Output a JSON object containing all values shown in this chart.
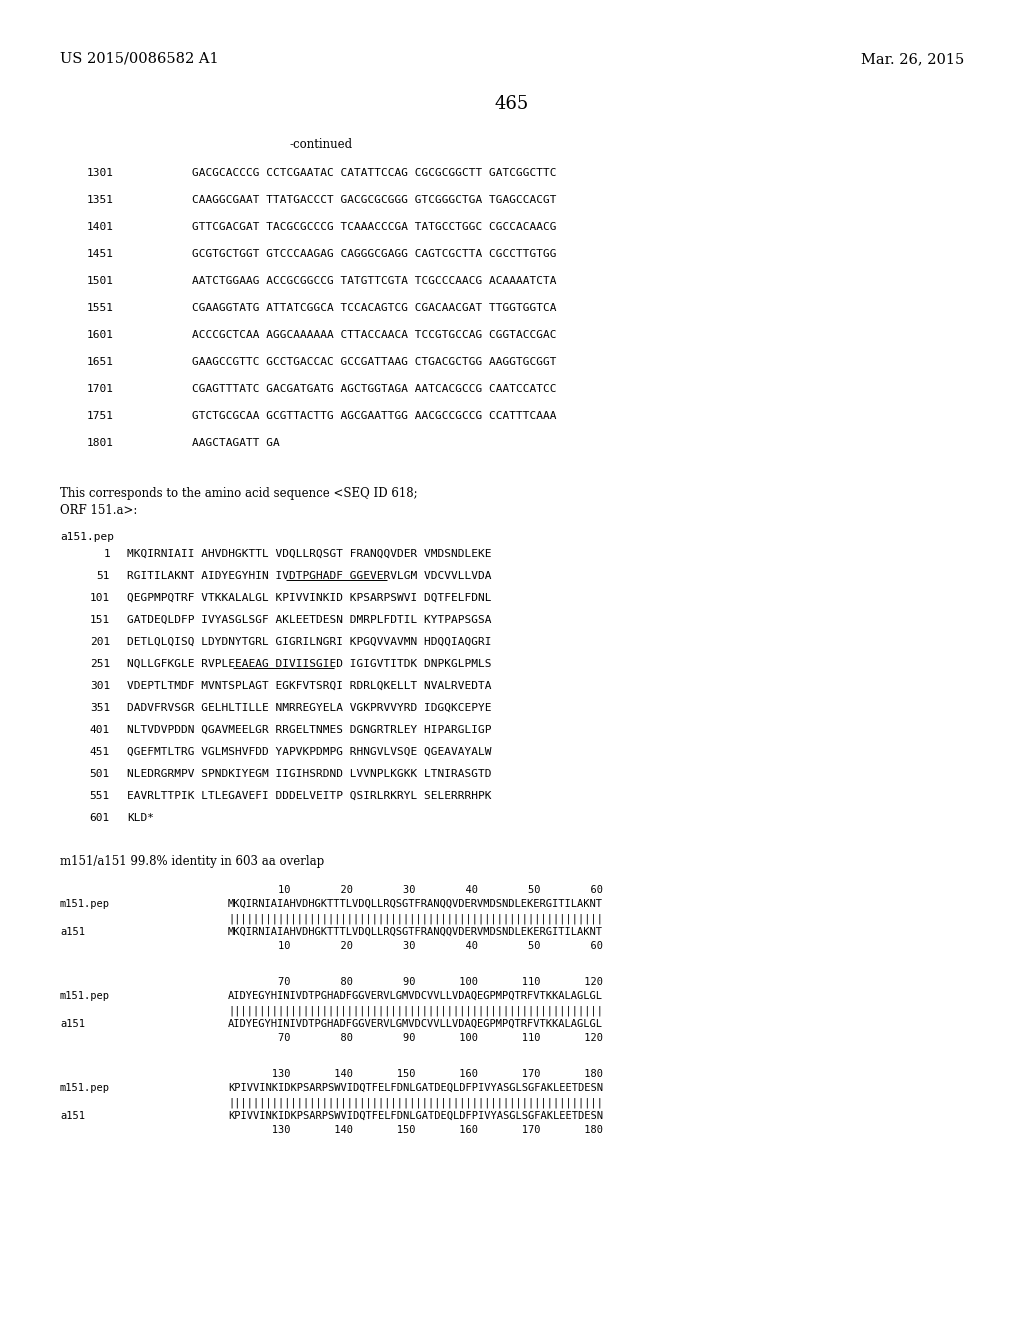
{
  "header_left": "US 2015/0086582 A1",
  "header_right": "Mar. 26, 2015",
  "page_number": "465",
  "continued": "-continued",
  "bg_color": "#ffffff",
  "dna_sequences": [
    [
      "1301",
      "GACGCACCCG CCTCGAATAC CATATTCCAG CGCGCGGCTT GATCGGCTTC"
    ],
    [
      "1351",
      "CAAGGCGAAT TTATGACCCT GACGCGCGGG GTCGGGCTGA TGAGCCACGT"
    ],
    [
      "1401",
      "GTTCGACGAT TACGCGCCCG TCAAACCCGA TATGCCTGGC CGCCACAACG"
    ],
    [
      "1451",
      "GCGTGCTGGT GTCCCAAGAG CAGGGCGAGG CAGTCGCTTA CGCCTTGTGG"
    ],
    [
      "1501",
      "AATCTGGAAG ACCGCGGCCG TATGTTCGTA TCGCCCAACG ACAAAATCTA"
    ],
    [
      "1551",
      "CGAAGGTATG ATTATCGGCA TCCACAGTCG CGACAACGAT TTGGTGGTCA"
    ],
    [
      "1601",
      "ACCCGCTCAA AGGCAAAAAA CTTACCAACA TCCGTGCCAG CGGTACCGAC"
    ],
    [
      "1651",
      "GAAGCCGTTC GCCTGACCAC GCCGATTAAG CTGACGCTGG AAGGTGCGGT"
    ],
    [
      "1701",
      "CGAGTTTATC GACGATGATG AGCTGGTAGA AATCACGCCG CAATCCATCC"
    ],
    [
      "1751",
      "GTCTGCGCAA GCGTTACTTG AGCGAATTGG AACGCCGCCG CCATTTCAAA"
    ],
    [
      "1801",
      "AAGCTAGATT GA"
    ]
  ],
  "corresponds_text_line1": "This corresponds to the amino acid sequence <SEQ ID 618;",
  "corresponds_text_line2": "ORF 151.a>:",
  "pep_label": "a151.pep",
  "pep_sequences": [
    [
      "1",
      "MKQIRNIAII AHVDHGKTTL VDQLLRQSGT FRANQQVDER VMDSNDLEKE"
    ],
    [
      "51",
      "RGITILAKNT AIDYEGYHIN IVDTPGHADF GGEVERVLGM VDCVVLLVDA"
    ],
    [
      "101",
      "QEGPMPQTRF VTKKALALGL KPIVVINKID KPSARPSWVI DQTFELFDNL"
    ],
    [
      "151",
      "GATDEQLDFP IVYASGLSGF AKLEETDESN DMRPLFDTIL KYTPAPSGSA"
    ],
    [
      "201",
      "DETLQLQISQ LDYDNYTGRL GIGRILNGRI KPGQVVAVMN HDQQIAQGRI"
    ],
    [
      "251",
      "NQLLGFKGLE RVPLEEAEAG DIVIISGIED IGIGVTITDK DNPKGLPMLS"
    ],
    [
      "301",
      "VDEPTLTMDF MVNTSPLAGT EGKFVTSRQI RDRLQKELLT NVALRVEDTA"
    ],
    [
      "351",
      "DADVFRVSGR GELHLTILLE NMRREGYELA VGKPRVVYRD IDGQKCEPYE"
    ],
    [
      "401",
      "NLTVDVPDDN QGAVMEELGR RRGELTNMES DGNGRTRLEY HIPARGLIGP"
    ],
    [
      "451",
      "QGEFMTLTRG VGLMSHVFDD YAPVKPDMPG RHNGVLVSQE QGEAVAYALW"
    ],
    [
      "501",
      "NLEDRGRMPV SPNDKIYEGM IIGIHSRDND LVVNPLKGKK LTNIRASGTD"
    ],
    [
      "551",
      "EAVRLTTPIK LTLEGAVEFI DDDELVEITP QSIRLRKRYL SELERRRHPK"
    ],
    [
      "601",
      "KLD*"
    ]
  ],
  "identity_text": "m151/a151 99.8% identity in 603 aa overlap",
  "aln_blocks": [
    {
      "top_nums": "        10        20        30        40        50        60",
      "label1": "m151.pep",
      "seq1": "MKQIRNIAIAHVDHGKTTTLVDQLLRQSGTFRANQQVDERVMDSNDLEKERGITILAKNT",
      "bars": "||||||||||||||||||||||||||||||||||||||||||||||||||||||||||||",
      "label2": "a151",
      "seq2": "MKQIRNIAIAHVDHGKTTTLVDQLLRQSGTFRANQQVDERVMDSNDLEKERGITILAKNT",
      "bot_nums": "        10        20        30        40        50        60"
    },
    {
      "top_nums": "        70        80        90       100       110       120",
      "label1": "m151.pep",
      "seq1": "AIDYEGYHINIVDTPGHADFGGVERVLGMVDCVVLLVDAQEGPMPQTRFVTKKALAGLGL",
      "bars": "||||||||||||||||||||||||||||||||||||||||||||||||||||||||||||",
      "label2": "a151",
      "seq2": "AIDYEGYHINIVDTPGHADFGGVERVLGMVDCVVLLVDAQEGPMPQTRFVTKKALAGLGL",
      "bot_nums": "        70        80        90       100       110       120"
    },
    {
      "top_nums": "       130       140       150       160       170       180",
      "label1": "m151.pep",
      "seq1": "KPIVVINKIDKPSARPSWVIDQTFELFDNLGATDEQLDFPIVYASGLSGFAKLEETDESN",
      "bars": "||||||||||||||||||||||||||||||||||||||||||||||||||||||||||||",
      "label2": "a151",
      "seq2": "KPIVVINKIDKPSARPSWVIDQTFELFDNLGATDEQLDFPIVYASGLSGFAKLEETDESN",
      "bot_nums": "       130       140       150       160       170       180"
    }
  ]
}
